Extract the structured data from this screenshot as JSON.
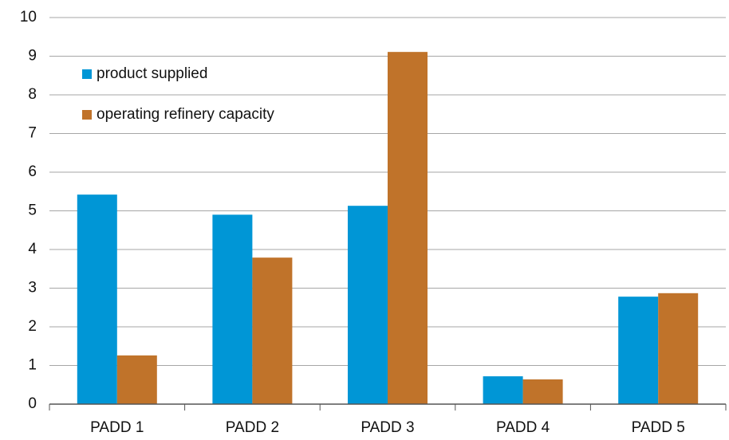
{
  "chart_data": {
    "type": "bar",
    "categories": [
      "PADD 1",
      "PADD 2",
      "PADD 3",
      "PADD 4",
      "PADD 5"
    ],
    "series": [
      {
        "name": "product supplied",
        "color": "#0096d6",
        "values": [
          5.42,
          4.9,
          5.13,
          0.72,
          2.78
        ]
      },
      {
        "name": "operating refinery capacity",
        "color": "#c0732a",
        "values": [
          1.26,
          3.79,
          9.11,
          0.64,
          2.87
        ]
      }
    ],
    "ylim": [
      0,
      10
    ],
    "yticks": [
      0,
      1,
      2,
      3,
      4,
      5,
      6,
      7,
      8,
      9,
      10
    ],
    "grid": true,
    "legend": "upper left"
  }
}
